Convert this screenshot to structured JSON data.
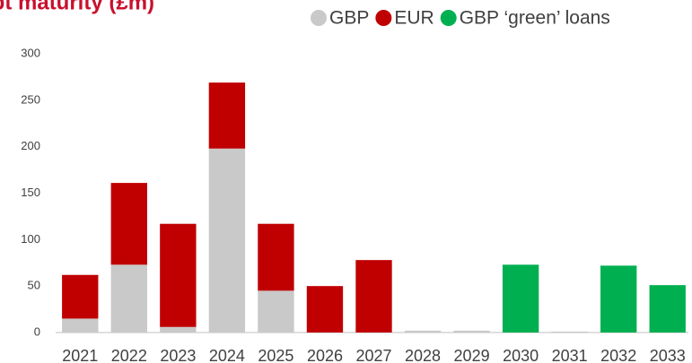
{
  "chart_data": {
    "type": "stacked_bar",
    "title": "Debt maturity (£m)",
    "categories": [
      "2021",
      "2022",
      "2023",
      "2024",
      "2025",
      "2026",
      "2027",
      "2028",
      "2029",
      "2030",
      "2031",
      "2032",
      "2033"
    ],
    "series": [
      {
        "name": "GBP",
        "color": "#c9c9c9",
        "values": [
          15,
          73,
          6,
          198,
          45,
          0,
          0,
          2,
          2,
          0,
          1,
          0,
          0
        ]
      },
      {
        "name": "EUR",
        "color": "#c00000",
        "values": [
          47,
          88,
          111,
          71,
          72,
          50,
          78,
          0,
          0,
          0,
          0,
          0,
          0
        ]
      },
      {
        "name": "GBP ‘green’ loans",
        "color": "#00b050",
        "values": [
          0,
          0,
          0,
          0,
          0,
          0,
          0,
          0,
          0,
          73,
          0,
          72,
          51
        ]
      }
    ],
    "ylim": [
      0,
      300
    ],
    "yticks": [
      0,
      50,
      100,
      150,
      200,
      250,
      300
    ],
    "grid": false
  }
}
